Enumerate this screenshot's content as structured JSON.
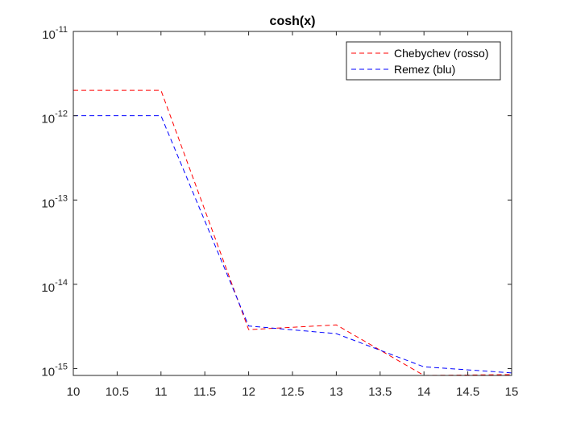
{
  "chart_data": {
    "type": "line",
    "title": "cosh(x)",
    "xlabel": "",
    "ylabel": "",
    "xlim": [
      10,
      15
    ],
    "ylim": [
      8.3e-16,
      1e-11
    ],
    "yscale": "log",
    "grid": false,
    "legend_position": "top-right",
    "x_ticks": [
      "10",
      "10.5",
      "11",
      "11.5",
      "12",
      "12.5",
      "13",
      "13.5",
      "14",
      "14.5",
      "15"
    ],
    "x_tick_values": [
      10,
      10.5,
      11,
      11.5,
      12,
      12.5,
      13,
      13.5,
      14,
      14.5,
      15
    ],
    "y_ticks": [
      {
        "value": 1e-15,
        "base": "10",
        "exp": "-15"
      },
      {
        "value": 1e-14,
        "base": "10",
        "exp": "-14"
      },
      {
        "value": 1e-13,
        "base": "10",
        "exp": "-13"
      },
      {
        "value": 1e-12,
        "base": "10",
        "exp": "-12"
      },
      {
        "value": 1e-11,
        "base": "10",
        "exp": "-11"
      }
    ],
    "x": [
      10,
      11,
      12,
      13,
      14,
      15
    ],
    "series": [
      {
        "name": "Chebychev (rosso)",
        "color": "#ff0000",
        "values": [
          2e-12,
          2e-12,
          2.9e-15,
          3.3e-15,
          8.3e-16,
          8.5e-16
        ]
      },
      {
        "name": "Remez (blu)",
        "color": "#0000ff",
        "values": [
          1e-12,
          1e-12,
          3.2e-15,
          2.6e-15,
          1.05e-15,
          8.9e-16
        ]
      }
    ]
  }
}
